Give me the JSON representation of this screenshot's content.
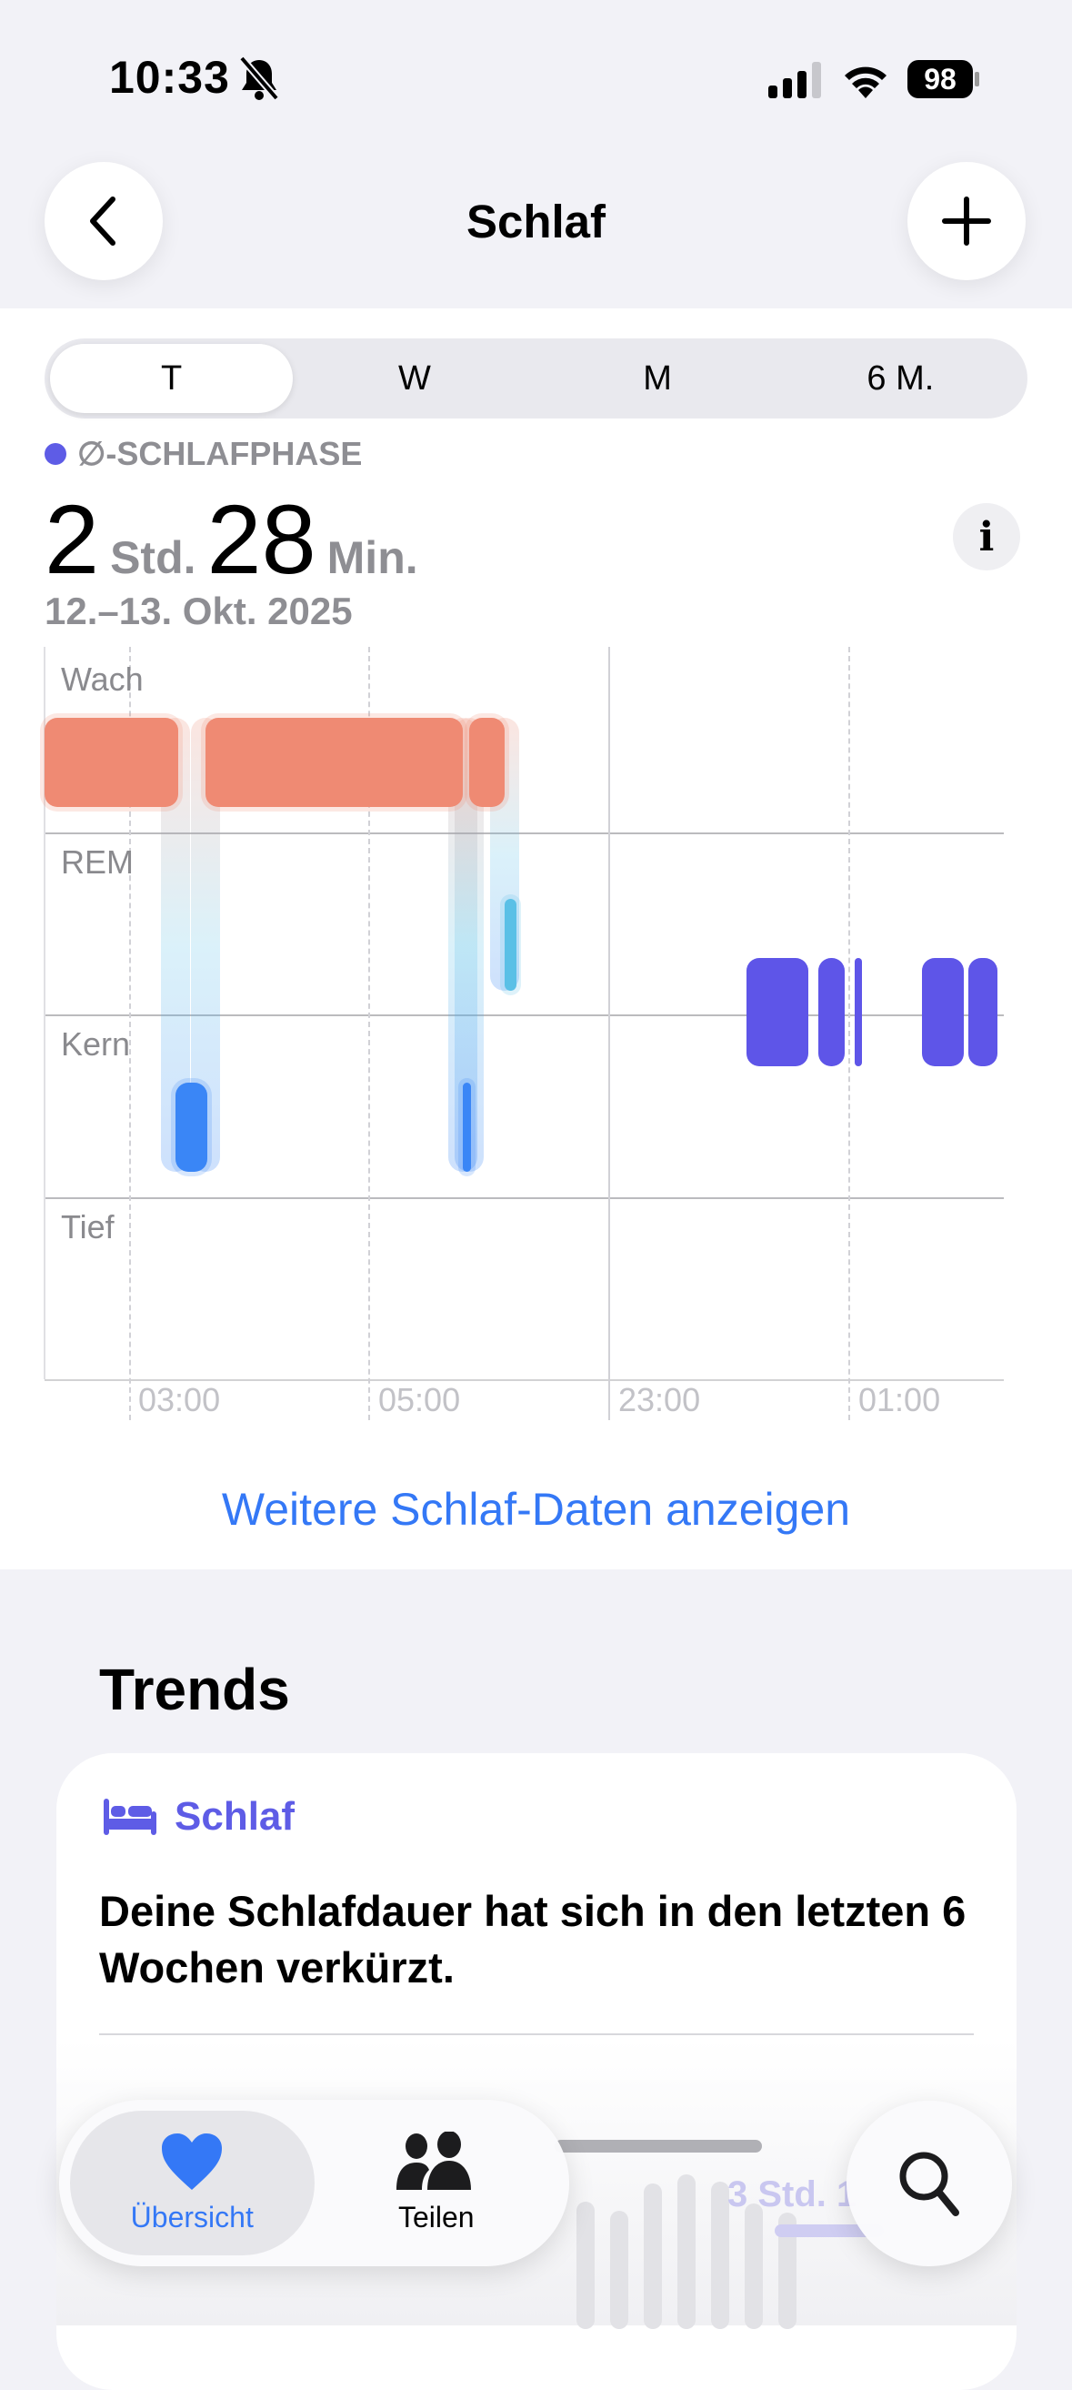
{
  "status_bar": {
    "time": "10:33",
    "battery": "98",
    "silent": true
  },
  "nav": {
    "title": "Schlaf",
    "back_icon": "chevron-left-icon",
    "add_icon": "plus-icon"
  },
  "segments": [
    {
      "label": "T",
      "active": true
    },
    {
      "label": "W",
      "active": false
    },
    {
      "label": "M",
      "active": false
    },
    {
      "label": "6 M.",
      "active": false
    }
  ],
  "summary": {
    "legend": "∅-SCHLAFPHASE",
    "legend_color": "#5e5ce6",
    "hours": "2",
    "hours_unit": "Std.",
    "minutes": "28",
    "minutes_unit": "Min.",
    "date_range": "12.–13. Okt. 2025"
  },
  "chart_data": {
    "type": "sleep-stages",
    "bands": [
      "Wach",
      "REM",
      "Kern",
      "Tief"
    ],
    "x_ticks": [
      {
        "label": "03:00",
        "section": 0,
        "time": "03:00"
      },
      {
        "label": "05:00",
        "section": 0,
        "time": "05:00"
      },
      {
        "label": "23:00",
        "section": 1,
        "time": "23:00"
      },
      {
        "label": "01:00",
        "section": 1,
        "time": "01:00"
      }
    ],
    "colors": {
      "Wach": "#ef8a73",
      "REM": "#5ac0e6",
      "Kern": "#3a86f6",
      "avg": "#5e55e8"
    },
    "segments": [
      {
        "stage": "Wach",
        "section": 0,
        "start": "02:17",
        "end": "03:24"
      },
      {
        "stage": "Kern",
        "section": 0,
        "start": "03:23",
        "end": "03:39"
      },
      {
        "stage": "Wach",
        "section": 0,
        "start": "03:38",
        "end": "05:47"
      },
      {
        "stage": "Kern",
        "section": 0,
        "start": "05:47",
        "end": "05:51"
      },
      {
        "stage": "Wach",
        "section": 0,
        "start": "05:50",
        "end": "06:08"
      },
      {
        "stage": "REM",
        "section": 0,
        "start": "06:08",
        "end": "06:14"
      }
    ],
    "average_segments": [
      {
        "section": 1,
        "start": "00:09",
        "end": "00:40"
      },
      {
        "section": 1,
        "start": "00:45",
        "end": "00:58"
      },
      {
        "section": 1,
        "start": "01:03",
        "end": "01:07"
      },
      {
        "section": 1,
        "start": "01:37",
        "end": "01:58"
      },
      {
        "section": 1,
        "start": "02:00",
        "end": "02:15"
      }
    ]
  },
  "more_link": "Weitere Schlaf-Daten anzeigen",
  "trends": {
    "heading": "Trends",
    "card_category": "Schlaf",
    "card_icon": "bed-icon",
    "card_text": "Deine Schlafdauer hat sich in den letzten 6 Wochen verkürzt.",
    "ghost_value": "3 Std. 1"
  },
  "tabbar": {
    "tabs": [
      {
        "label": "Übersicht",
        "icon": "heart-icon",
        "active": true
      },
      {
        "label": "Teilen",
        "icon": "people-icon",
        "active": false
      }
    ],
    "search_icon": "magnifier-icon"
  }
}
